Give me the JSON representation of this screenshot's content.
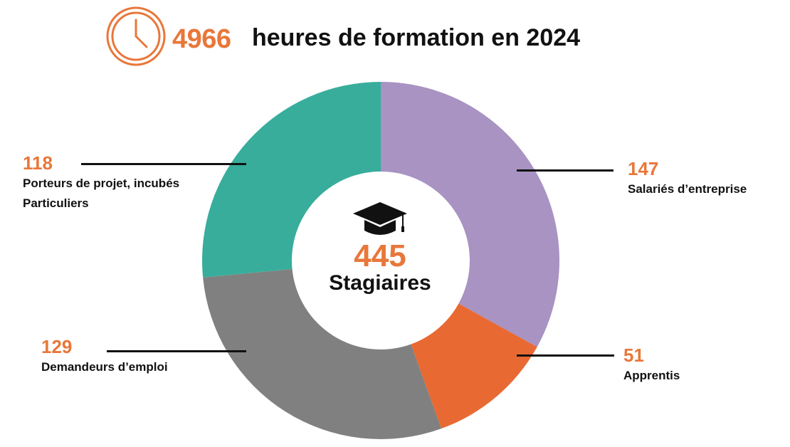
{
  "header": {
    "total_hours": "4966",
    "label": "heures de formation en 2024",
    "icon": "clock-icon"
  },
  "center": {
    "total": "445",
    "label": "Stagiaires",
    "icon": "graduation-cap-icon"
  },
  "colors": {
    "accent": "#E8773A",
    "text": "#111111"
  },
  "chart_data": {
    "type": "pie",
    "donut": true,
    "total": 445,
    "slices": [
      {
        "label": "Salariés d’entreprise",
        "value": 147,
        "display": "147",
        "color": "#A893C2"
      },
      {
        "label": "Apprentis",
        "value": 51,
        "display": "51",
        "color": "#E96933"
      },
      {
        "label": "Demandeurs d’emploi",
        "value": 129,
        "display": "129",
        "color": "#808080"
      },
      {
        "label_lines": [
          "Porteurs de projet, incubés",
          "Particuliers"
        ],
        "value": 118,
        "display": "118",
        "color": "#38AD9C"
      }
    ]
  }
}
